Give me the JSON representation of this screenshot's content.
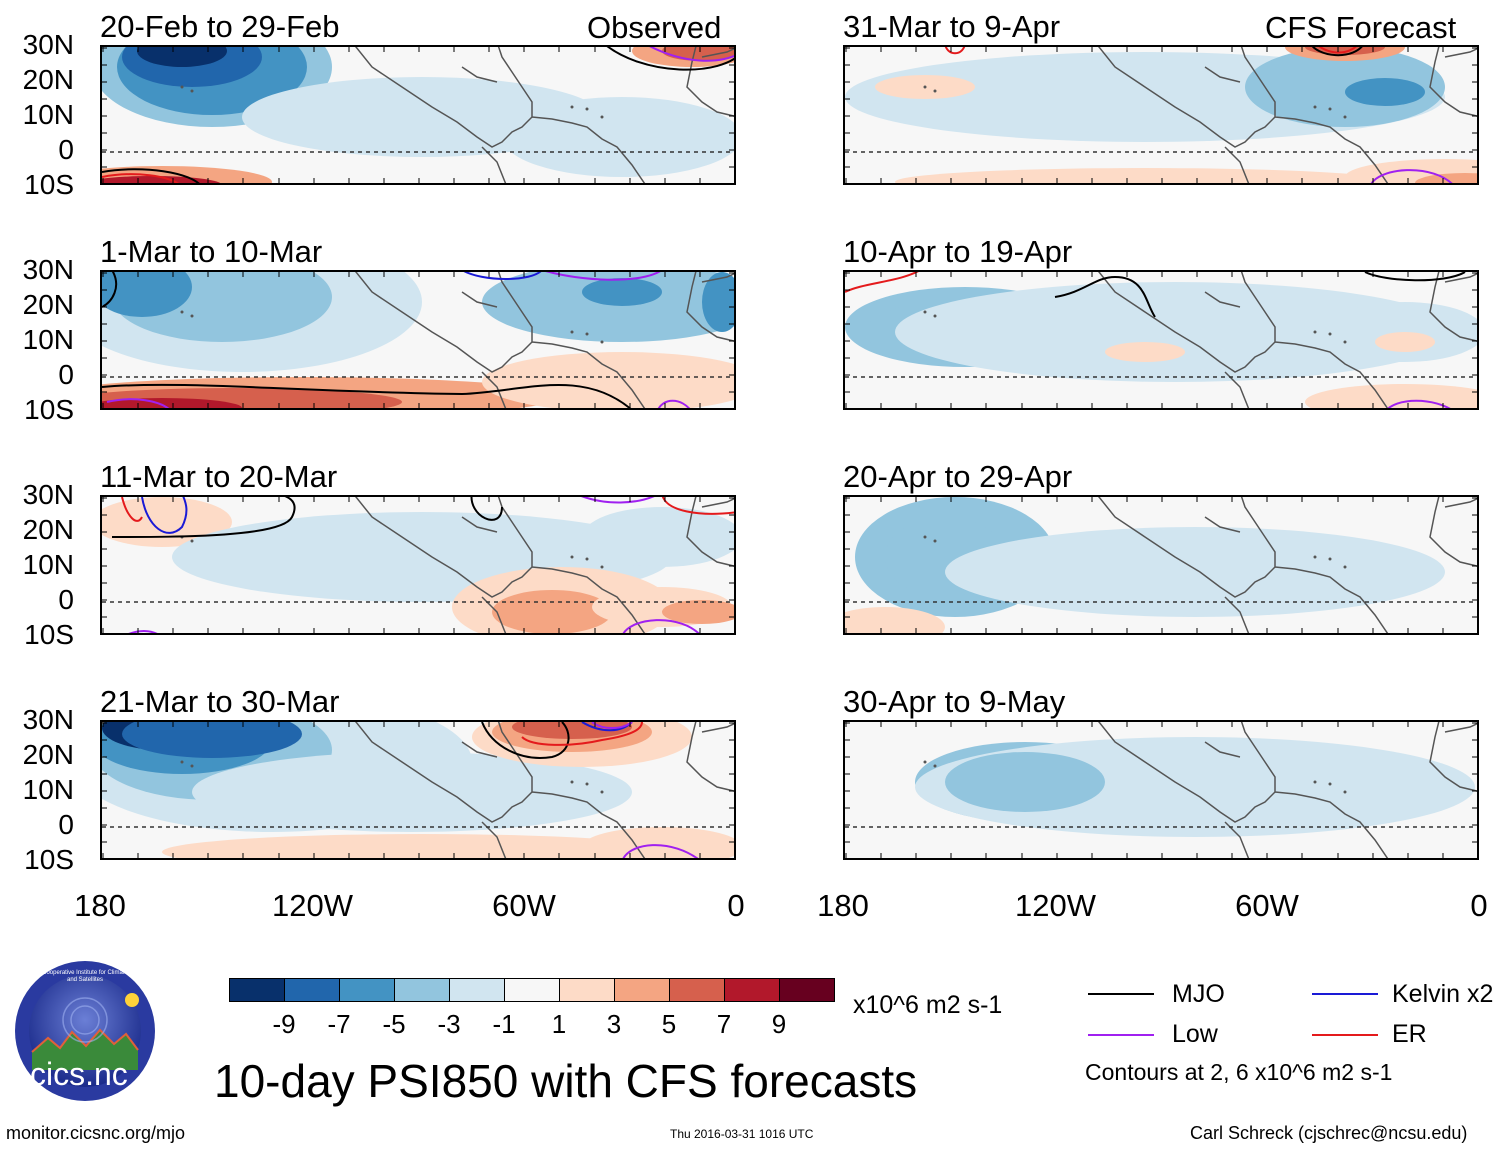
{
  "labels": {
    "observed": "Observed",
    "forecast": "CFS Forecast"
  },
  "panels": [
    {
      "title": "20-Feb to 29-Feb",
      "column": "observed"
    },
    {
      "title": "1-Mar to 10-Mar",
      "column": "observed"
    },
    {
      "title": "11-Mar to 20-Mar",
      "column": "observed"
    },
    {
      "title": "21-Mar to 30-Mar",
      "column": "observed"
    },
    {
      "title": "31-Mar to 9-Apr",
      "column": "forecast"
    },
    {
      "title": "10-Apr to 19-Apr",
      "column": "forecast"
    },
    {
      "title": "20-Apr to 29-Apr",
      "column": "forecast"
    },
    {
      "title": "30-Apr to 9-May",
      "column": "forecast"
    }
  ],
  "lat_ticks": [
    "30N",
    "20N",
    "10N",
    "0",
    "10S"
  ],
  "lon_ticks": [
    "180",
    "120W",
    "60W",
    "0"
  ],
  "colorbar": {
    "colors": [
      "#08306b",
      "#2166ac",
      "#4393c3",
      "#92c5de",
      "#d1e5f0",
      "#f7f7f7",
      "#fddbc7",
      "#f4a582",
      "#d6604d",
      "#b2182b",
      "#67001f"
    ],
    "labels": [
      "-9",
      "-7",
      "-5",
      "-3",
      "-1",
      "1",
      "3",
      "5",
      "7",
      "9"
    ],
    "units": "x10^6 m2 s-1"
  },
  "legend": {
    "items": [
      {
        "label": "MJO",
        "color": "#000000"
      },
      {
        "label": "Kelvin x2",
        "color": "#1a1ad6"
      },
      {
        "label": "Low",
        "color": "#a020f0"
      },
      {
        "label": "ER",
        "color": "#e41a1c"
      }
    ],
    "contours_note": "Contours at 2, 6 x10^6 m2 s-1"
  },
  "main_title": "10-day PSI850 with CFS forecasts",
  "logo_text": "cics.nc",
  "logo_ring_text": "Cooperative Institute for Climate and Satellites",
  "footer": {
    "url": "monitor.cicsnc.org/mjo",
    "timestamp": "Thu 2016-03-31 1016 UTC",
    "credit": "Carl Schreck (cjschrec@ncsu.edu)"
  },
  "chart_data": {
    "type": "heatmap",
    "title": "10-day PSI850 with CFS forecasts",
    "variable": "850-hPa streamfunction anomaly",
    "units": "x10^6 m2 s-1",
    "lon_range": [
      -180,
      0
    ],
    "lat_range": [
      -10,
      30
    ],
    "color_levels": [
      -9,
      -7,
      -5,
      -3,
      -1,
      1,
      3,
      5,
      7,
      9
    ],
    "contour_levels": [
      2,
      6
    ],
    "panels": [
      "20-Feb to 29-Feb",
      "1-Mar to 10-Mar",
      "11-Mar to 20-Mar",
      "21-Mar to 30-Mar",
      "31-Mar to 9-Apr",
      "10-Apr to 19-Apr",
      "20-Apr to 29-Apr",
      "30-Apr to 9-May"
    ]
  }
}
